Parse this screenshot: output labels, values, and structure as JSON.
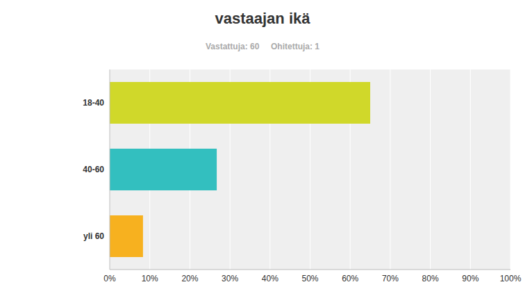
{
  "chart_data": {
    "type": "bar",
    "title": "vastaajan ikä",
    "subtitle": "Vastattuja: 60     Ohitettuja: 1",
    "orientation": "horizontal",
    "categories": [
      "18-40",
      "40-60",
      "yli 60"
    ],
    "values": [
      65,
      26.7,
      8.3
    ],
    "colors": [
      "#d0d82a",
      "#33bfbf",
      "#f7b11f"
    ],
    "xlim": [
      0,
      100
    ],
    "xticks": [
      {
        "value": 0,
        "label": "0%"
      },
      {
        "value": 10,
        "label": "10%"
      },
      {
        "value": 20,
        "label": "20%"
      },
      {
        "value": 30,
        "label": "30%"
      },
      {
        "value": 40,
        "label": "40%"
      },
      {
        "value": 50,
        "label": "50%"
      },
      {
        "value": 60,
        "label": "60%"
      },
      {
        "value": 70,
        "label": "70%"
      },
      {
        "value": 80,
        "label": "80%"
      },
      {
        "value": 90,
        "label": "90%"
      },
      {
        "value": 100,
        "label": "100%"
      }
    ],
    "grid": true
  }
}
